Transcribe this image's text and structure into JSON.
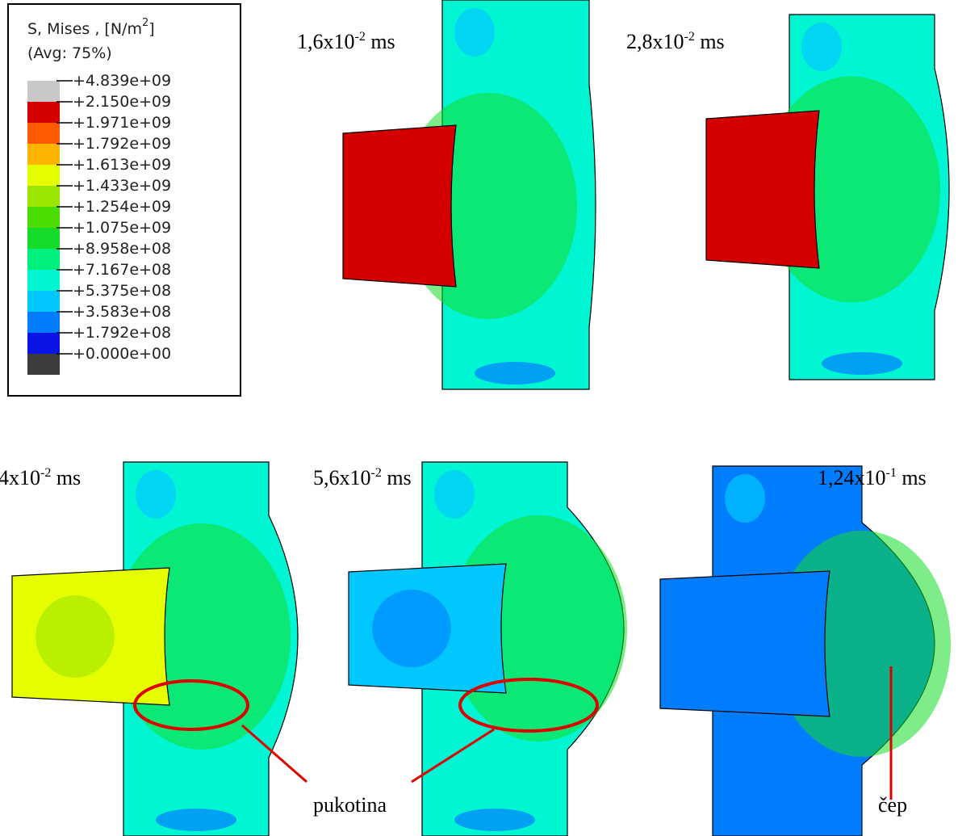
{
  "legend": {
    "title": {
      "main": "S, Mises  , [N/m",
      "sup": "2",
      "end": "]"
    },
    "subtitle": "(Avg: 75%)",
    "labels": [
      "+4.839e+09",
      "+2.150e+09",
      "+1.971e+09",
      "+1.792e+09",
      "+1.613e+09",
      "+1.433e+09",
      "+1.254e+09",
      "+1.075e+09",
      "+8.958e+08",
      "+7.167e+08",
      "+5.375e+08",
      "+3.583e+08",
      "+1.792e+08",
      "+0.000e+00"
    ],
    "colors": [
      "#c8c8c8",
      "#d40000",
      "#ff5a00",
      "#ffb400",
      "#e6ff00",
      "#9be600",
      "#4bdc00",
      "#14dc28",
      "#00f07d",
      "#00f5d2",
      "#00c8ff",
      "#007dff",
      "#0a14e6",
      "#3c3c3c"
    ]
  },
  "frames": [
    {
      "time": {
        "main": "1,6x10",
        "sup": "-2",
        "end": " ms"
      }
    },
    {
      "time": {
        "main": "2,8x10",
        "sup": "-2",
        "end": " ms"
      }
    },
    {
      "time": {
        "main": "4x10",
        "sup": "-2",
        "end": " ms"
      }
    },
    {
      "time": {
        "main": "5,6x10",
        "sup": "-2",
        "end": " ms"
      }
    },
    {
      "time": {
        "main": "1,24x10",
        "sup": "-1",
        "end": " ms"
      }
    }
  ],
  "annotations": {
    "crack": "pukotina",
    "plug": "čep"
  }
}
